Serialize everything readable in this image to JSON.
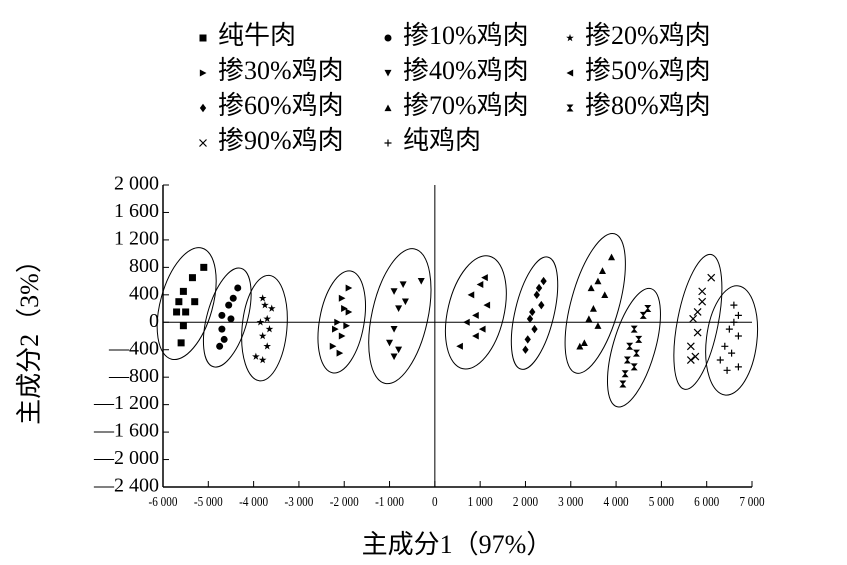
{
  "chart_data": {
    "type": "scatter",
    "x_label": "主成分1（97%）",
    "y_label": "主成分2（3%）",
    "color": "#000000",
    "xlim": [
      -6000,
      7000
    ],
    "xticks": [
      {
        "value": -6000,
        "label": "-6 000"
      },
      {
        "value": -5000,
        "label": "-5 000"
      },
      {
        "value": -4000,
        "label": "-4 000"
      },
      {
        "value": -3000,
        "label": "-3 000"
      },
      {
        "value": -2000,
        "label": "-2 000"
      },
      {
        "value": -1000,
        "label": "-1 000"
      },
      0,
      {
        "value": 1000,
        "label": "1 000"
      },
      {
        "value": 2000,
        "label": "2 000"
      },
      {
        "value": 3000,
        "label": "3 000"
      },
      {
        "value": 4000,
        "label": "4 000"
      },
      {
        "value": 5000,
        "label": "5 000"
      },
      {
        "value": 6000,
        "label": "6 000"
      },
      {
        "value": 7000,
        "label": "7 000"
      }
    ],
    "ylim": [
      -2400,
      2000
    ],
    "yticks": [
      {
        "value": 2000,
        "label": "2 000"
      },
      {
        "value": 1600,
        "label": "1 600"
      },
      {
        "value": 1200,
        "label": "1 200"
      },
      800,
      400,
      0,
      {
        "value": -400,
        "label": "—400"
      },
      {
        "value": -800,
        "label": "—800"
      },
      {
        "value": -1200,
        "label": "—1 200"
      },
      {
        "value": -1600,
        "label": "—1 600"
      },
      {
        "value": -2000,
        "label": "—2 000"
      },
      {
        "value": -2400,
        "label": "—2 400"
      }
    ],
    "series": [
      {
        "name": "纯牛肉",
        "marker": "square",
        "x": [
          -5100,
          -5350,
          -5550,
          -5300,
          -5650,
          -5500,
          -5700,
          -5550,
          -5600
        ],
        "values": [
          800,
          650,
          450,
          300,
          300,
          150,
          150,
          -50,
          -300
        ]
      },
      {
        "name": "掺10%鸡肉",
        "marker": "circle",
        "x": [
          -4350,
          -4450,
          -4550,
          -4700,
          -4500,
          -4700,
          -4650,
          -4750
        ],
        "values": [
          500,
          350,
          250,
          100,
          50,
          -100,
          -250,
          -350
        ]
      },
      {
        "name": "掺20%鸡肉",
        "marker": "star",
        "x": [
          -3600,
          -3800,
          -3750,
          -3700,
          -3850,
          -3650,
          -3800,
          -3700,
          -3950,
          -3800
        ],
        "values": [
          200,
          350,
          250,
          50,
          0,
          -100,
          -200,
          -350,
          -500,
          -550
        ]
      },
      {
        "name": "掺30%鸡肉",
        "marker": "right",
        "x": [
          -1900,
          -2050,
          -2000,
          -1900,
          -2150,
          -1950,
          -2200,
          -2050,
          -2250,
          -2100
        ],
        "values": [
          500,
          350,
          200,
          150,
          0,
          -50,
          -100,
          -200,
          -350,
          -450
        ]
      },
      {
        "name": "掺40%鸡肉",
        "marker": "down",
        "x": [
          -300,
          -700,
          -900,
          -650,
          -800,
          -900,
          -1000,
          -800,
          -900
        ],
        "values": [
          600,
          550,
          450,
          300,
          200,
          -100,
          -300,
          -400,
          -500
        ]
      },
      {
        "name": "掺50%鸡肉",
        "marker": "left",
        "x": [
          1100,
          1000,
          800,
          1150,
          900,
          700,
          1050,
          900,
          550
        ],
        "values": [
          650,
          550,
          400,
          250,
          100,
          0,
          -100,
          -200,
          -350
        ]
      },
      {
        "name": "掺60%鸡肉",
        "marker": "diamond",
        "x": [
          2400,
          2300,
          2250,
          2350,
          2150,
          2100,
          2200,
          2050,
          2000
        ],
        "values": [
          600,
          500,
          400,
          250,
          150,
          50,
          -100,
          -250,
          -400
        ]
      },
      {
        "name": "掺70%鸡肉",
        "marker": "up",
        "x": [
          3900,
          3700,
          3600,
          3450,
          3750,
          3500,
          3400,
          3600,
          3300,
          3200
        ],
        "values": [
          950,
          750,
          600,
          500,
          400,
          200,
          50,
          -50,
          -300,
          -350
        ]
      },
      {
        "name": "掺80%鸡肉",
        "marker": "hourglass",
        "x": [
          4700,
          4600,
          4400,
          4500,
          4300,
          4450,
          4250,
          4400,
          4200,
          4150
        ],
        "values": [
          200,
          100,
          -100,
          -250,
          -350,
          -450,
          -550,
          -650,
          -750,
          -900
        ]
      },
      {
        "name": "掺90%鸡肉",
        "marker": "cross",
        "x": [
          6100,
          5900,
          5900,
          5800,
          5700,
          5800,
          5650,
          5750,
          5650
        ],
        "values": [
          650,
          450,
          300,
          150,
          50,
          -150,
          -350,
          -500,
          -550
        ]
      },
      {
        "name": "纯鸡肉",
        "marker": "plus",
        "x": [
          6600,
          6700,
          6600,
          6500,
          6700,
          6400,
          6550,
          6300,
          6700,
          6450
        ],
        "values": [
          250,
          100,
          0,
          -100,
          -200,
          -350,
          -450,
          -550,
          -650,
          -700
        ]
      }
    ]
  }
}
